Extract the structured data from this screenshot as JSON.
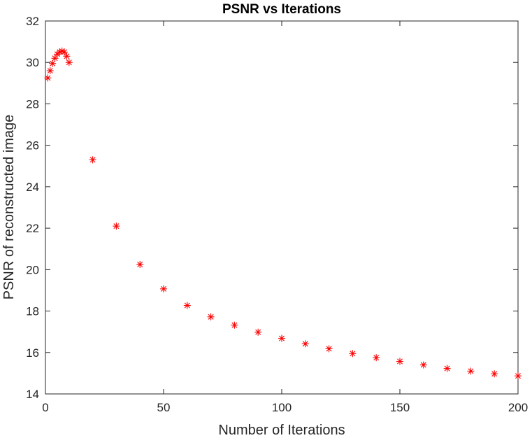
{
  "chart_data": {
    "type": "scatter",
    "title": "PSNR vs Iterations",
    "xlabel": "Number of Iterations",
    "ylabel": "PSNR of reconstructed image",
    "xlim": [
      0,
      200
    ],
    "ylim": [
      14,
      32
    ],
    "xticks": [
      0,
      50,
      100,
      150,
      200
    ],
    "yticks": [
      14,
      16,
      18,
      20,
      22,
      24,
      26,
      28,
      30,
      32
    ],
    "grid": false,
    "marker": "*",
    "marker_color": "#ff0000",
    "x": [
      1,
      2,
      3,
      4,
      5,
      6,
      7,
      8,
      9,
      10,
      20,
      30,
      40,
      50,
      60,
      70,
      80,
      90,
      100,
      110,
      120,
      130,
      140,
      150,
      160,
      170,
      180,
      190,
      200
    ],
    "y": [
      29.25,
      29.6,
      29.95,
      30.2,
      30.4,
      30.5,
      30.55,
      30.5,
      30.3,
      30.0,
      25.3,
      22.1,
      20.25,
      19.07,
      18.27,
      17.72,
      17.32,
      16.98,
      16.68,
      16.42,
      16.18,
      15.95,
      15.75,
      15.57,
      15.4,
      15.23,
      15.1,
      14.97,
      14.87
    ]
  }
}
